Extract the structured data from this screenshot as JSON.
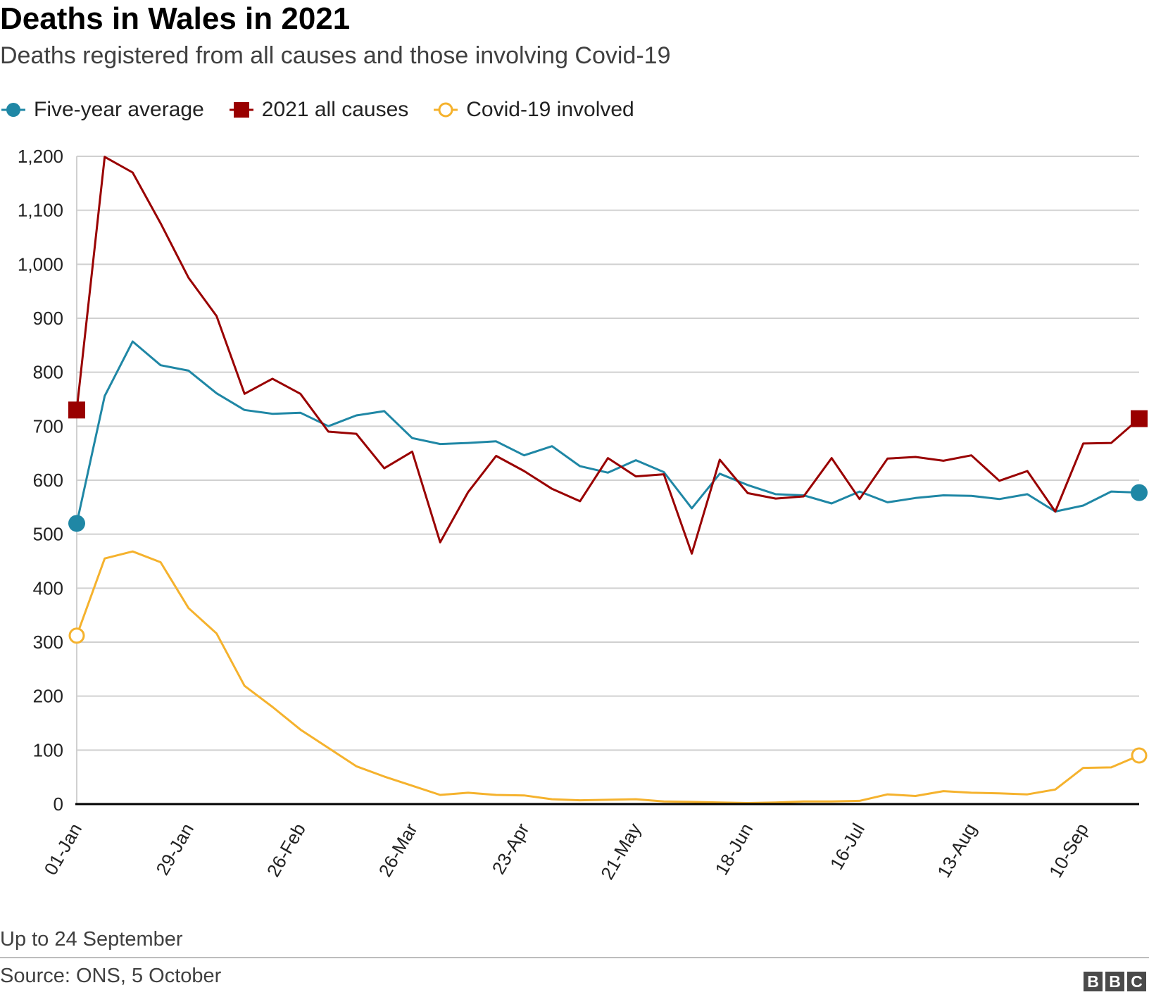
{
  "title": "Deaths in Wales in 2021",
  "subtitle": "Deaths registered from all causes and those involving Covid-19",
  "note": "Up to 24 September",
  "source": "Source: ONS, 5 October",
  "logo": [
    "B",
    "B",
    "C"
  ],
  "chart_data": {
    "type": "line",
    "title": "Deaths in Wales in 2021",
    "xlabel": "",
    "ylabel": "",
    "ylim": [
      0,
      1200
    ],
    "yticks": [
      0,
      100,
      200,
      300,
      400,
      500,
      600,
      700,
      800,
      900,
      1000,
      1100,
      1200
    ],
    "ytick_labels": [
      "0",
      "100",
      "200",
      "300",
      "400",
      "500",
      "600",
      "700",
      "800",
      "900",
      "1,000",
      "1,100",
      "1,200"
    ],
    "x_tick_labels": [
      "01-Jan",
      "29-Jan",
      "26-Feb",
      "26-Mar",
      "23-Apr",
      "21-May",
      "18-Jun",
      "16-Jul",
      "13-Aug",
      "10-Sep"
    ],
    "x_tick_indices": [
      0,
      4,
      8,
      12,
      16,
      20,
      24,
      28,
      32,
      36
    ],
    "legend_position": "top-left",
    "grid": true,
    "series": [
      {
        "name": "Five-year average",
        "color": "#1f87a5",
        "marker": "circle-filled",
        "values": [
          520,
          756,
          857,
          813,
          803,
          761,
          730,
          723,
          725,
          700,
          720,
          728,
          678,
          667,
          669,
          672,
          646,
          663,
          626,
          614,
          637,
          615,
          548,
          612,
          591,
          574,
          572,
          557,
          579,
          559,
          567,
          572,
          571,
          565,
          574,
          542,
          553,
          579,
          577
        ]
      },
      {
        "name": "2021 all causes",
        "color": "#990000",
        "marker": "square-filled",
        "values": [
          730,
          1199,
          1170,
          1076,
          975,
          904,
          760,
          788,
          760,
          690,
          686,
          622,
          653,
          485,
          578,
          645,
          617,
          584,
          561,
          641,
          607,
          611,
          464,
          638,
          576,
          566,
          570,
          641,
          565,
          640,
          643,
          636,
          646,
          599,
          617,
          542,
          668,
          669,
          714
        ]
      },
      {
        "name": "Covid-19 involved",
        "color": "#f5b22d",
        "marker": "circle-open",
        "values": [
          312,
          455,
          468,
          448,
          363,
          316,
          219,
          180,
          138,
          104,
          70,
          51,
          34,
          17,
          21,
          17,
          16,
          9,
          7,
          8,
          9,
          5,
          4,
          3,
          2,
          3,
          5,
          5,
          6,
          18,
          15,
          24,
          21,
          20,
          18,
          27,
          67,
          68,
          90
        ]
      }
    ]
  }
}
